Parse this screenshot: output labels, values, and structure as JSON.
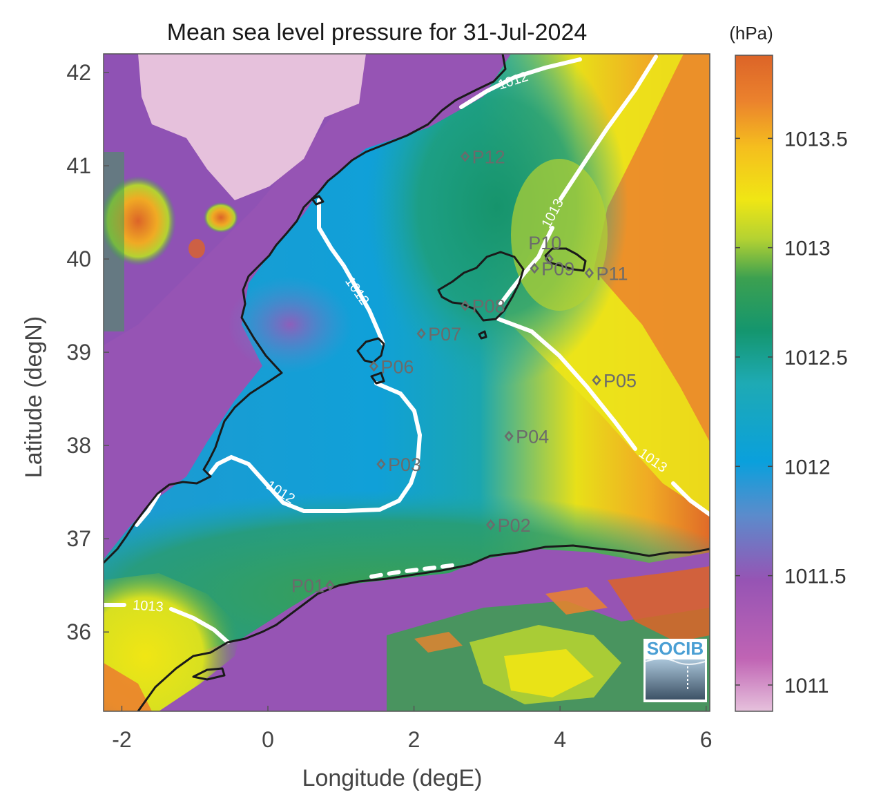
{
  "title": "Mean sea level pressure for 31-Jul-2024",
  "x_axis": {
    "label": "Longitude (degE)",
    "range": [
      -2.25,
      6.05
    ],
    "ticks": [
      {
        "value": -2,
        "label": "-2"
      },
      {
        "value": 0,
        "label": "0"
      },
      {
        "value": 2,
        "label": "2"
      },
      {
        "value": 4,
        "label": "4"
      },
      {
        "value": 6,
        "label": "6"
      }
    ]
  },
  "y_axis": {
    "label": "Latitude (degN)",
    "range": [
      35.15,
      42.2
    ],
    "ticks": [
      {
        "value": 36,
        "label": "36"
      },
      {
        "value": 37,
        "label": "37"
      },
      {
        "value": 38,
        "label": "38"
      },
      {
        "value": 39,
        "label": "39"
      },
      {
        "value": 40,
        "label": "40"
      },
      {
        "value": 41,
        "label": "41"
      },
      {
        "value": 42,
        "label": "42"
      }
    ]
  },
  "colorbar": {
    "unit": "(hPa)",
    "range": [
      1010.88,
      1013.88
    ],
    "ticks": [
      {
        "value": 1011,
        "label": "1011"
      },
      {
        "value": 1011.5,
        "label": "1011.5"
      },
      {
        "value": 1012,
        "label": "1012"
      },
      {
        "value": 1012.5,
        "label": "1012.5"
      },
      {
        "value": 1013,
        "label": "1013"
      },
      {
        "value": 1013.5,
        "label": "1013.5"
      }
    ],
    "colors": [
      "#e6c1dc",
      "#c064b4",
      "#9654b4",
      "#5a8ccc",
      "#0aa0dc",
      "#1eaab4",
      "#14966e",
      "#3ca050",
      "#b4d232",
      "#f0e614",
      "#f5be1e",
      "#eb822d",
      "#dc6428"
    ]
  },
  "stations": [
    {
      "name": "P01",
      "lon": 0.85,
      "lat": 36.5
    },
    {
      "name": "P02",
      "lon": 3.05,
      "lat": 37.15
    },
    {
      "name": "P03",
      "lon": 1.55,
      "lat": 37.8
    },
    {
      "name": "P04",
      "lon": 3.3,
      "lat": 38.1
    },
    {
      "name": "P05",
      "lon": 4.5,
      "lat": 38.7
    },
    {
      "name": "P06",
      "lon": 1.45,
      "lat": 38.85
    },
    {
      "name": "P07",
      "lon": 2.1,
      "lat": 39.2
    },
    {
      "name": "P08",
      "lon": 2.7,
      "lat": 39.5
    },
    {
      "name": "P09",
      "lon": 3.65,
      "lat": 39.9
    },
    {
      "name": "P10",
      "lon": 3.85,
      "lat": 40.0
    },
    {
      "name": "P11",
      "lon": 4.4,
      "lat": 39.85
    },
    {
      "name": "P12",
      "lon": 2.7,
      "lat": 41.1
    }
  ],
  "contours": [
    {
      "level": "1012",
      "label": "1012"
    },
    {
      "level": "1013",
      "label": "1013"
    }
  ],
  "logo": "SOCIB",
  "colors": {
    "coastline": "#1a1a1a",
    "contour": "#ffffff",
    "station_marker": "#6b6b6b",
    "axis": "#555555"
  }
}
